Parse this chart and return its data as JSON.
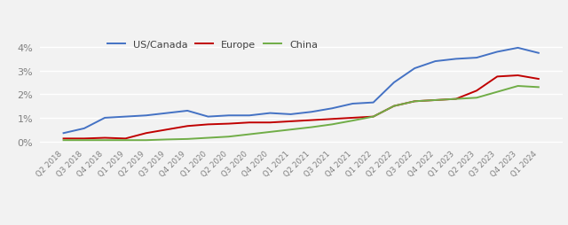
{
  "labels": [
    "Q2 2018",
    "Q3 2018",
    "Q4 2018",
    "Q1 2019",
    "Q2 2019",
    "Q3 2019",
    "Q4 2019",
    "Q1 2020",
    "Q2 2020",
    "Q3 2020",
    "Q4 2020",
    "Q1 2021",
    "Q2 2021",
    "Q3 2021",
    "Q4 2021",
    "Q1 2022",
    "Q2 2022",
    "Q3 2022",
    "Q4 2022",
    "Q1 2023",
    "Q2 2023",
    "Q3 2023",
    "Q4 2023",
    "Q1 2024"
  ],
  "us_canada": [
    0.35,
    0.55,
    1.0,
    1.05,
    1.1,
    1.2,
    1.3,
    1.05,
    1.1,
    1.1,
    1.2,
    1.15,
    1.25,
    1.4,
    1.6,
    1.65,
    2.5,
    3.1,
    3.4,
    3.5,
    3.55,
    3.8,
    3.97,
    3.75
  ],
  "europe": [
    0.12,
    0.12,
    0.15,
    0.12,
    0.35,
    0.5,
    0.65,
    0.72,
    0.75,
    0.8,
    0.8,
    0.85,
    0.9,
    0.95,
    1.0,
    1.05,
    1.5,
    1.7,
    1.75,
    1.8,
    2.15,
    2.75,
    2.8,
    2.65
  ],
  "china": [
    0.05,
    0.05,
    0.05,
    0.05,
    0.05,
    0.08,
    0.1,
    0.15,
    0.2,
    0.3,
    0.4,
    0.5,
    0.6,
    0.72,
    0.88,
    1.05,
    1.5,
    1.7,
    1.75,
    1.8,
    1.85,
    2.1,
    2.35,
    2.3
  ],
  "us_color": "#4472C4",
  "europe_color": "#C00000",
  "china_color": "#70AD47",
  "background_color": "#f2f2f2",
  "plot_bg_color": "#f2f2f2",
  "grid_color": "#ffffff",
  "ytick_color": "#808080",
  "xtick_color": "#808080",
  "yticks": [
    0,
    1,
    2,
    3,
    4
  ],
  "ylim": [
    -0.1,
    4.5
  ],
  "legend_labels": [
    "US/Canada",
    "Europe",
    "China"
  ]
}
